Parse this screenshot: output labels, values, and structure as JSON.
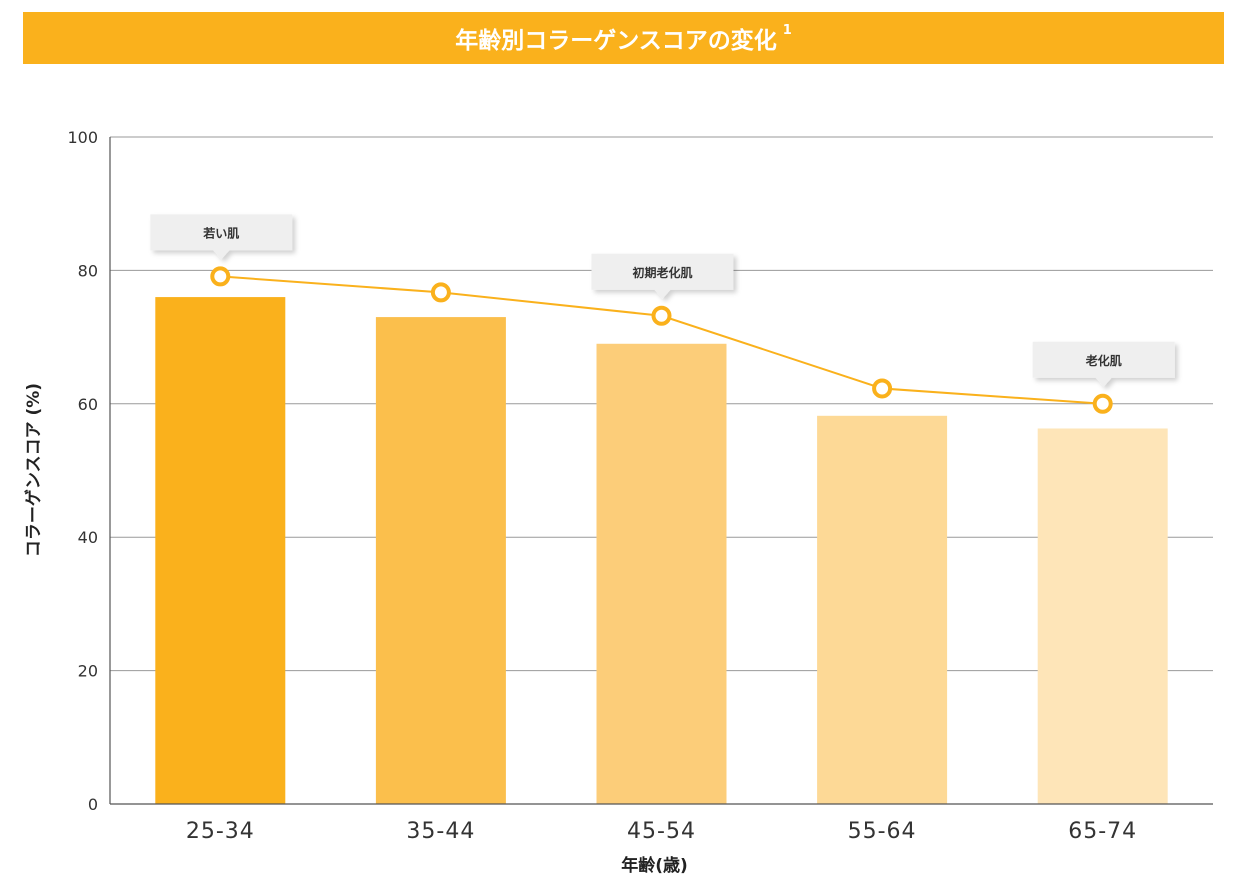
{
  "header": {
    "title": "年齢別コラーゲンスコアの変化",
    "footnote": "1"
  },
  "chart_data": {
    "type": "bar",
    "title": "年齢別コラーゲンスコアの変化",
    "xlabel": "年齢(歳)",
    "ylabel": "コラーゲンスコア (%)",
    "ylim": [
      0,
      100
    ],
    "yticks": [
      0,
      20,
      40,
      60,
      80,
      100
    ],
    "grid": true,
    "categories": [
      "25-34",
      "35-44",
      "45-54",
      "55-64",
      "65-74"
    ],
    "series": [
      {
        "type": "bar",
        "values": [
          76,
          73,
          69,
          58.2,
          56.3
        ],
        "colors": [
          "#FAB11C",
          "#FBBF4C",
          "#FCCD79",
          "#FDD996",
          "#FEE5B8"
        ]
      },
      {
        "type": "line",
        "values": [
          79.1,
          76.7,
          73.2,
          62.3,
          60.0
        ],
        "color": "#FAB11C"
      }
    ],
    "annotations": [
      {
        "category_index": 0,
        "text": "若い肌"
      },
      {
        "category_index": 2,
        "text": "初期老化肌"
      },
      {
        "category_index": 4,
        "text": "老化肌"
      }
    ]
  }
}
